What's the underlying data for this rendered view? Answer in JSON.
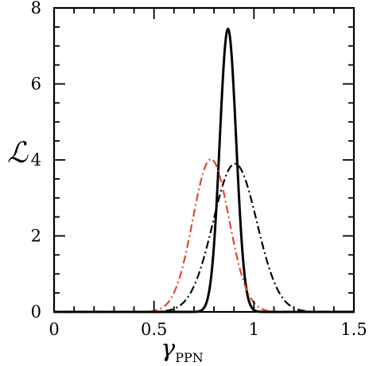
{
  "chart_data": {
    "type": "line",
    "xlabel": "γ",
    "xlabel_subscript": "PPN",
    "ylabel": "ℒ",
    "xlim": [
      0,
      1.5
    ],
    "ylim": [
      0,
      8
    ],
    "xticks": [
      0,
      0.5,
      1,
      1.5
    ],
    "xtick_labels": [
      "0",
      "0.5",
      "1",
      "1.5"
    ],
    "yticks": [
      0,
      2,
      4,
      6,
      8
    ],
    "ytick_labels": [
      "0",
      "2",
      "4",
      "6",
      "8"
    ],
    "grid": false,
    "series": [
      {
        "style": "solid",
        "color": "#000000",
        "shape": "gaussian",
        "peak_x": 0.87,
        "peak_y": 7.45,
        "x": [
          0.7,
          0.75,
          0.78,
          0.8,
          0.82,
          0.84,
          0.85,
          0.86,
          0.87,
          0.88,
          0.89,
          0.9,
          0.92,
          0.94,
          0.96,
          0.98,
          1.0,
          1.02,
          1.05
        ],
        "y": [
          0.05,
          0.55,
          1.4,
          2.3,
          3.6,
          5.2,
          6.1,
          6.9,
          7.45,
          6.9,
          6.1,
          5.2,
          3.6,
          2.1,
          1.0,
          0.4,
          0.13,
          0.03,
          0.0
        ]
      },
      {
        "style": "dash-dot",
        "color": "#000000",
        "shape": "gaussian",
        "peak_x": 0.905,
        "peak_y": 3.9,
        "x": [
          0.55,
          0.6,
          0.65,
          0.7,
          0.75,
          0.8,
          0.85,
          0.905,
          0.95,
          1.0,
          1.05,
          1.1,
          1.15,
          1.2,
          1.25,
          1.3
        ],
        "y": [
          0.0,
          0.04,
          0.18,
          0.55,
          1.3,
          2.4,
          3.4,
          3.9,
          3.6,
          2.7,
          1.6,
          0.8,
          0.3,
          0.1,
          0.02,
          0.0
        ]
      },
      {
        "style": "dash-dot",
        "color": "#e0482a",
        "shape": "gaussian",
        "peak_x": 0.785,
        "peak_y": 4.02,
        "x": [
          0.45,
          0.5,
          0.55,
          0.6,
          0.65,
          0.7,
          0.75,
          0.785,
          0.82,
          0.85,
          0.9,
          0.95,
          1.0,
          1.05
        ],
        "y": [
          0.0,
          0.04,
          0.18,
          0.6,
          1.45,
          2.65,
          3.7,
          4.02,
          3.7,
          3.1,
          1.8,
          0.75,
          0.2,
          0.03
        ]
      }
    ]
  }
}
